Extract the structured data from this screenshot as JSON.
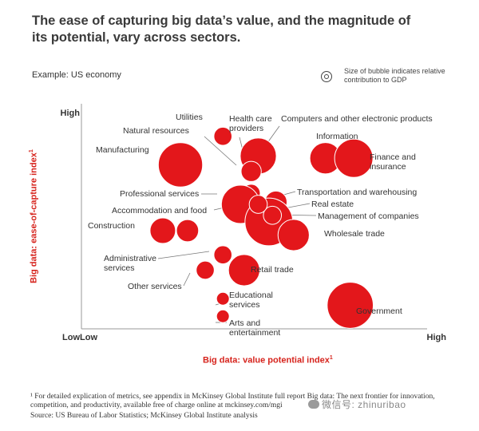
{
  "title": "The ease of capturing big data’s value, and the magnitude of its potential, vary across sectors.",
  "example": "Example: US economy",
  "legend_text": "Size of bubble indicates relative contribution to GDP",
  "footnote": "¹ For detailed explication of metrics, see appendix in McKinsey Global Institute full report Big data: The next frontier for innovation, competition, and productivity, available free of charge online at mckinsey.com/mgi",
  "source": "Source: US Bureau of Labor Statistics; McKinsey Global Institute analysis",
  "watermark": "微信号: zhinuribao",
  "colors": {
    "bubble": "#e3171b",
    "axis_title": "#d6231c",
    "text": "#333333"
  },
  "chart_data": {
    "type": "scatter",
    "xlabel": "Big data: value potential index",
    "xlabel_sup": "1",
    "ylabel": "Big data: ease-of-capture index",
    "ylabel_sup": "1",
    "x_ticks": [
      "Low",
      "High"
    ],
    "y_ticks": [
      "Low",
      "High"
    ],
    "xlim": [
      0,
      100
    ],
    "ylim": [
      0,
      100
    ],
    "size_meaning": "relative contribution to GDP",
    "points": [
      {
        "label": "Utilities",
        "x": 40,
        "y": 87,
        "size": 2
      },
      {
        "label": "Health care providers",
        "x": 50,
        "y": 78,
        "size": 8
      },
      {
        "label": "Natural resources",
        "x": 48,
        "y": 71,
        "size": 2.5
      },
      {
        "label": "Manufacturing",
        "x": 28,
        "y": 74,
        "size": 12
      },
      {
        "label": "Computers and other electronic products",
        "x": 48,
        "y": 61,
        "size": 2
      },
      {
        "label": "Information",
        "x": 69,
        "y": 77,
        "size": 6
      },
      {
        "label": "Finance and insurance",
        "x": 77,
        "y": 77,
        "size": 9
      },
      {
        "label": "Professional services",
        "x": 45,
        "y": 56,
        "size": 9
      },
      {
        "label": "Transportation and warehousing",
        "x": 55,
        "y": 57,
        "size": 3
      },
      {
        "label": "Real estate",
        "x": 53,
        "y": 48,
        "size": 14
      },
      {
        "label": "Management of companies",
        "x": 54,
        "y": 51,
        "size": 2
      },
      {
        "label": "Accommodation and food",
        "x": 50,
        "y": 56,
        "size": 2
      },
      {
        "label": "Wholesale trade",
        "x": 60,
        "y": 42,
        "size": 6
      },
      {
        "label": "Construction",
        "x": 23,
        "y": 44,
        "size": 4
      },
      {
        "label": "Construction",
        "x": 30,
        "y": 44,
        "size": 3
      },
      {
        "label": "Administrative services",
        "x": 40,
        "y": 33,
        "size": 2
      },
      {
        "label": "Retail trade",
        "x": 46,
        "y": 26,
        "size": 6
      },
      {
        "label": "Other services",
        "x": 35,
        "y": 26,
        "size": 2
      },
      {
        "label": "Educational services",
        "x": 40,
        "y": 13,
        "size": 1
      },
      {
        "label": "Arts and entertainment",
        "x": 40,
        "y": 5,
        "size": 1
      },
      {
        "label": "Government",
        "x": 76,
        "y": 10,
        "size": 13
      }
    ]
  }
}
